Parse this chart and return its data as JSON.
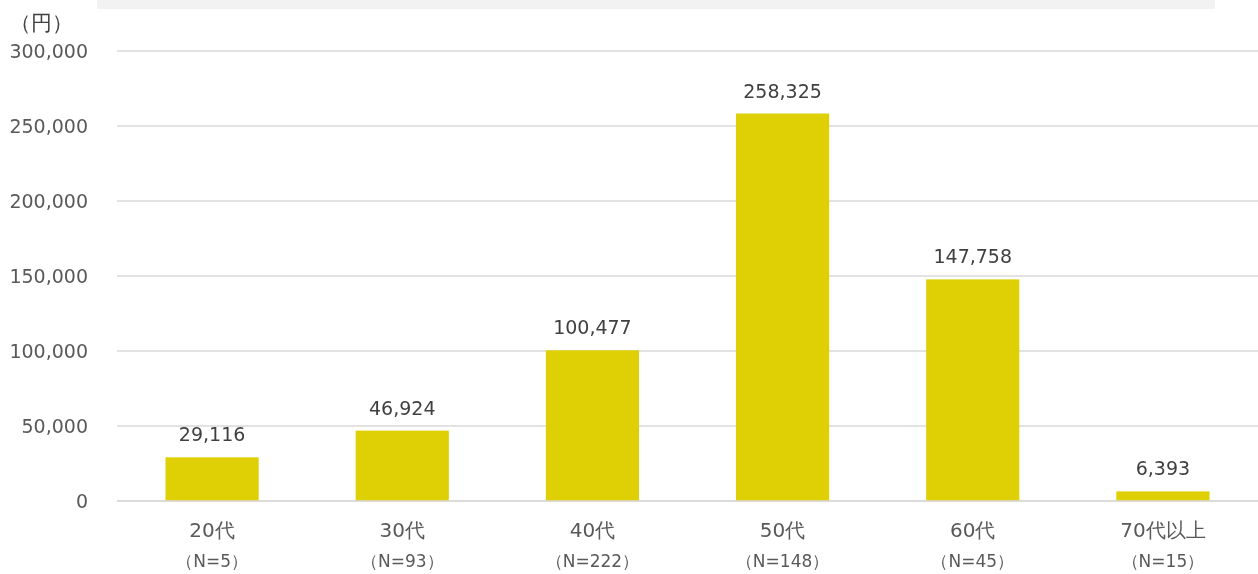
{
  "chart_data": {
    "type": "bar",
    "ylabel": "（円）",
    "categories": [
      "20代（N=5）",
      "30代（N=93）",
      "40代（N=222）",
      "50代（N=148）",
      "60代（N=45）",
      "70代以上（N=15）"
    ],
    "values": [
      29116,
      46924,
      100477,
      258325,
      147758,
      6393
    ],
    "value_labels": [
      "29,116",
      "46,924",
      "100,477",
      "258,325",
      "147,758",
      "6,393"
    ],
    "color": "#dfcf05",
    "ylim": [
      0,
      300000
    ],
    "yticks": [
      {
        "value": 0,
        "label": "0"
      },
      {
        "value": 50000,
        "label": "50,000"
      },
      {
        "value": 100000,
        "label": "100,000"
      },
      {
        "value": 150000,
        "label": "150,000"
      },
      {
        "value": 200000,
        "label": "200,000"
      },
      {
        "value": 250000,
        "label": "250,000"
      },
      {
        "value": 300000,
        "label": "300,000"
      }
    ],
    "grid": "y"
  }
}
